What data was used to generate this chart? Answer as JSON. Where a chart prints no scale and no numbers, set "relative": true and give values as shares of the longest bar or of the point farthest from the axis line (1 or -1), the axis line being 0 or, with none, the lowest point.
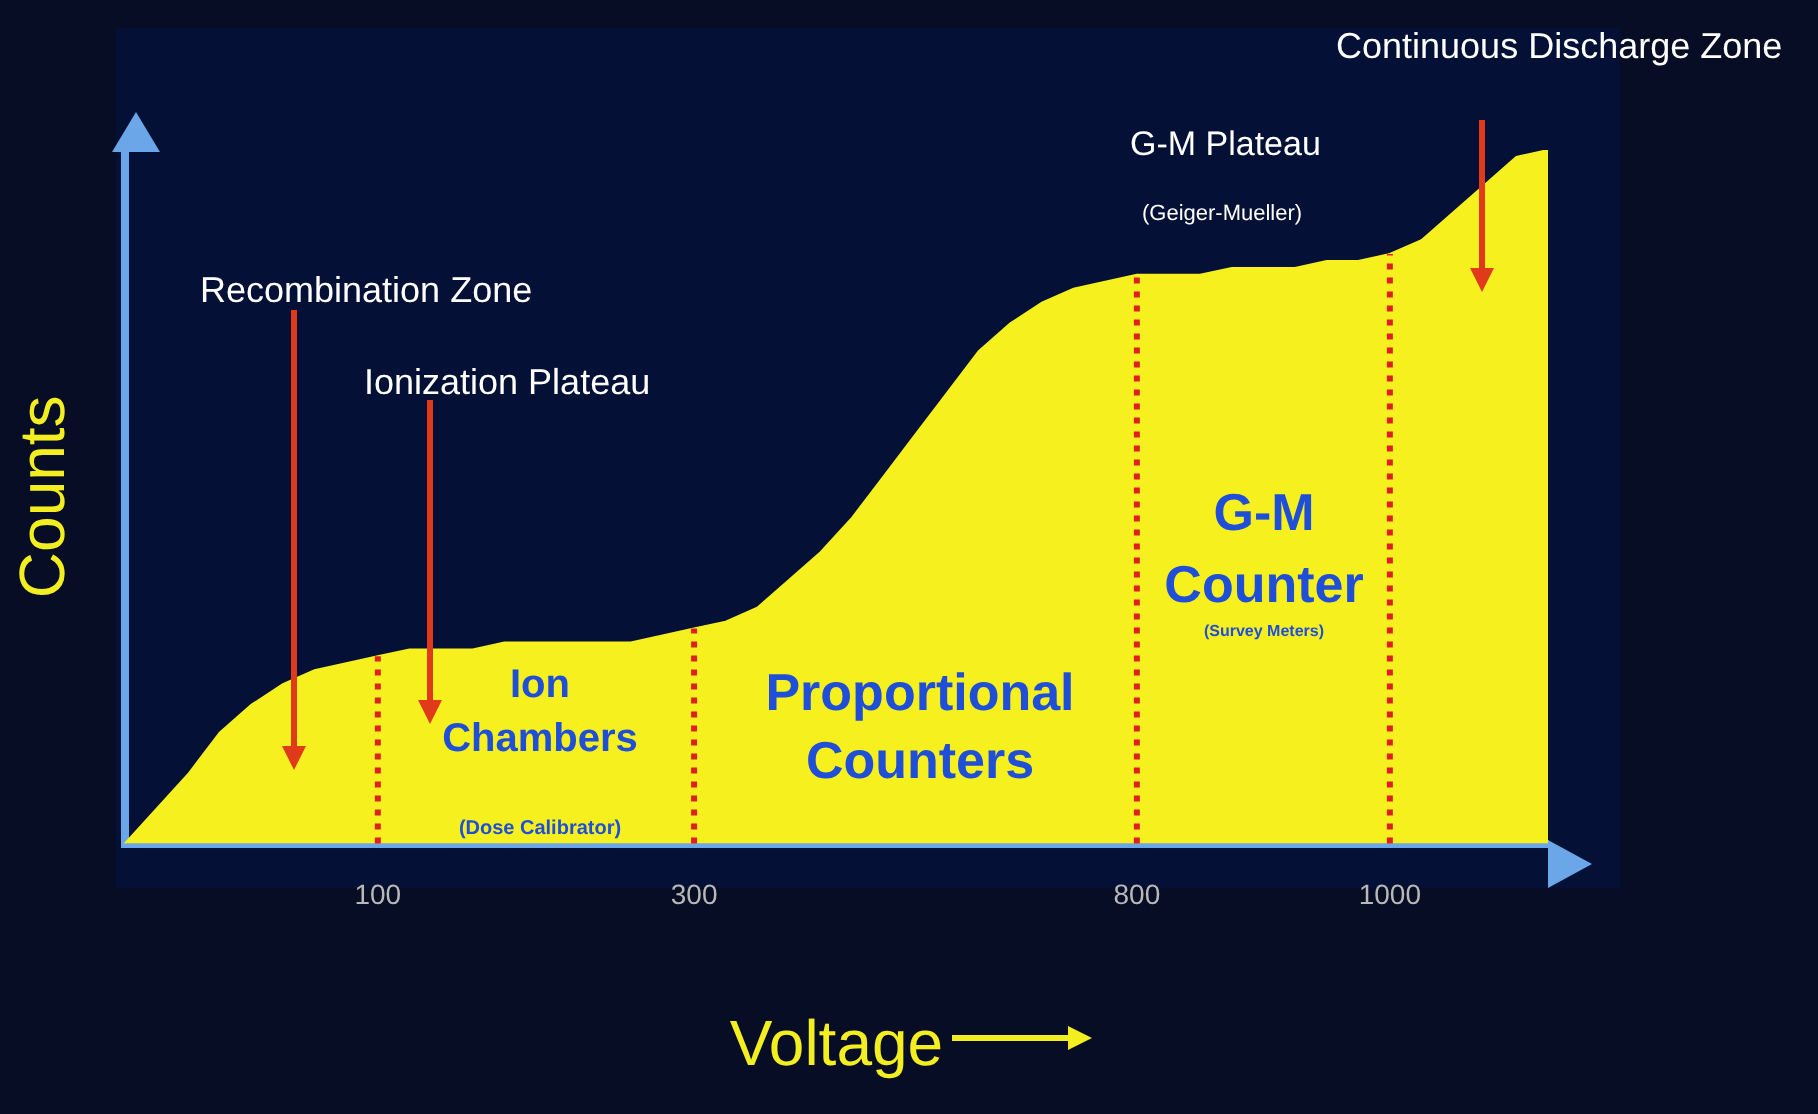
{
  "chart_data": {
    "type": "area",
    "relative": true,
    "xlabel": "Voltage",
    "ylabel": "Counts",
    "categories": [
      null,
      null,
      null,
      null,
      null,
      null,
      null,
      null,
      "100",
      null,
      null,
      null,
      null,
      null,
      null,
      null,
      null,
      null,
      "300",
      null,
      null,
      null,
      null,
      null,
      null,
      null,
      null,
      null,
      null,
      null,
      null,
      null,
      "800",
      null,
      null,
      null,
      null,
      null,
      null,
      null,
      "1000",
      null,
      null,
      null,
      null,
      null
    ],
    "series": [
      {
        "color": "#f5f01e",
        "values": [
          0,
          0.05,
          0.1,
          0.16,
          0.2,
          0.23,
          0.25,
          0.26,
          0.27,
          0.28,
          0.28,
          0.28,
          0.29,
          0.29,
          0.29,
          0.29,
          0.29,
          0.3,
          0.31,
          0.32,
          0.34,
          0.38,
          0.42,
          0.47,
          0.53,
          0.59,
          0.65,
          0.71,
          0.75,
          0.78,
          0.8,
          0.81,
          0.82,
          0.82,
          0.82,
          0.83,
          0.83,
          0.83,
          0.84,
          0.84,
          0.85,
          0.87,
          0.91,
          0.95,
          0.99,
          1
        ]
      }
    ],
    "ref_lines": [
      {
        "axis": "x",
        "value": "100",
        "color": "#e02020",
        "line_style": "dotted"
      },
      {
        "axis": "x",
        "value": "300",
        "color": "#e02020",
        "line_style": "dotted"
      },
      {
        "axis": "x",
        "value": "800",
        "color": "#e02020",
        "line_style": "dotted"
      },
      {
        "axis": "x",
        "value": "1000",
        "color": "#e02020",
        "line_style": "dotted"
      }
    ],
    "annotations": [
      "Recombination Zone",
      "Ionization Plateau",
      "G-M Plateau",
      "(Geiger-Mueller)",
      "Continuous Discharge Zone",
      "Ion Chambers",
      "(Dose Calibrator)",
      "Proportional Counters",
      "G-M Counter",
      "(Survey Meters)"
    ],
    "grid": false,
    "legend": false
  }
}
